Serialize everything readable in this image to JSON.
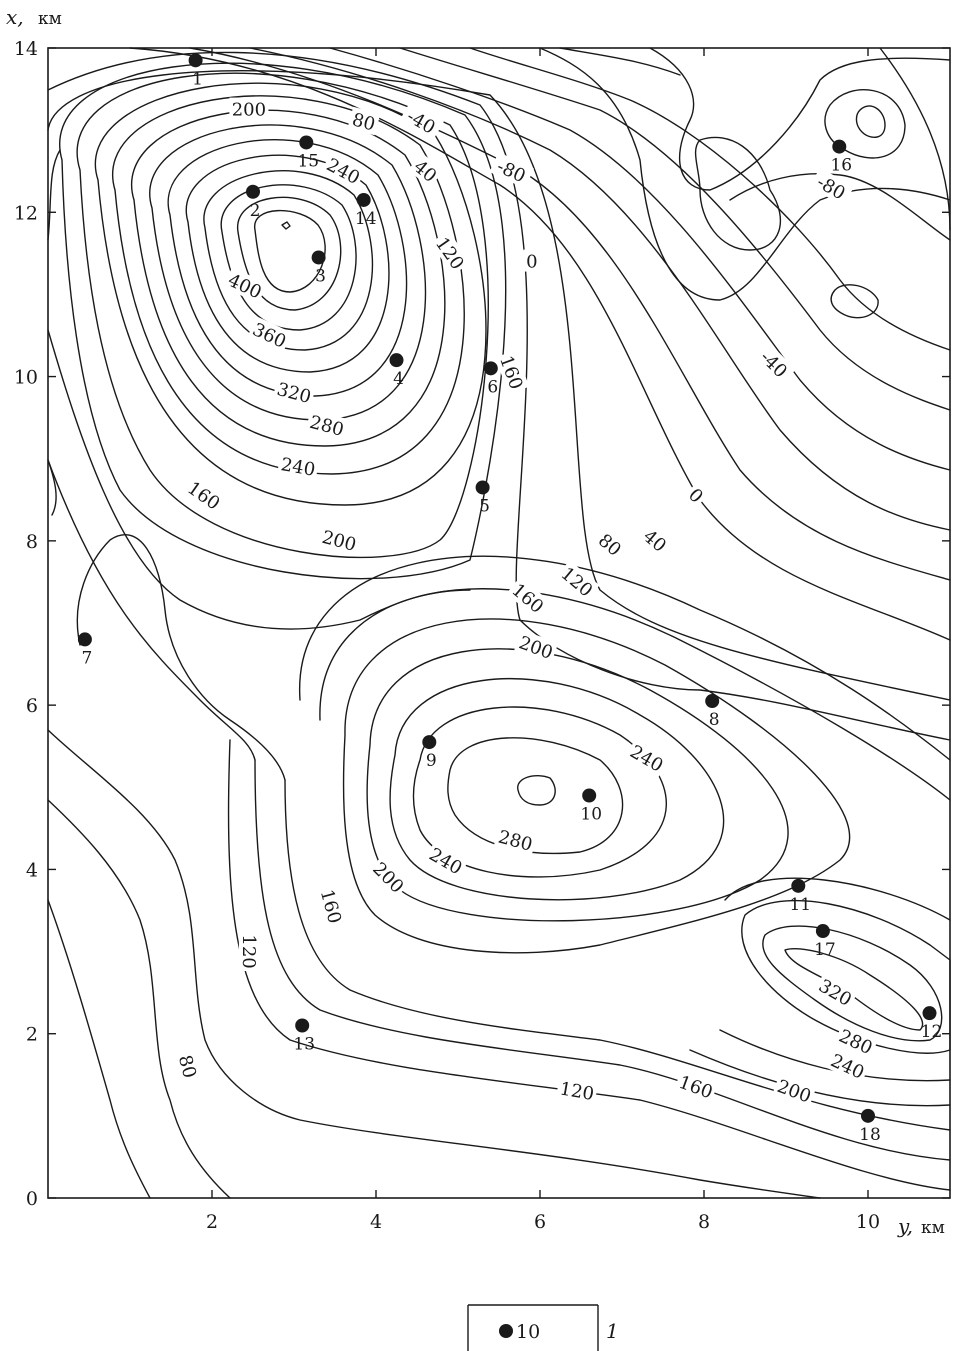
{
  "map": {
    "y_axis": {
      "name": "y,",
      "unit": "км",
      "ticks": [
        "2",
        "4",
        "6",
        "8",
        "10"
      ],
      "values": [
        2,
        4,
        6,
        8,
        10
      ],
      "range": [
        0,
        11
      ]
    },
    "x_axis": {
      "name": "x,",
      "unit": "км",
      "ticks": [
        "0",
        "2",
        "4",
        "6",
        "8",
        "10",
        "12",
        "14"
      ],
      "values": [
        0,
        2,
        4,
        6,
        8,
        10,
        12,
        14
      ],
      "range": [
        0,
        14
      ]
    },
    "contour_labels": [
      {
        "text": "200",
        "y": 2.45,
        "x": 13.25,
        "angle": 0
      },
      {
        "text": "80",
        "y": 3.85,
        "x": 13.1,
        "angle": 15
      },
      {
        "text": "-40",
        "y": 4.55,
        "x": 13.1,
        "angle": 30
      },
      {
        "text": "240",
        "y": 3.6,
        "x": 12.5,
        "angle": 28
      },
      {
        "text": "40",
        "y": 4.6,
        "x": 12.5,
        "angle": 40
      },
      {
        "text": "-80",
        "y": 5.65,
        "x": 12.5,
        "angle": 25
      },
      {
        "text": "120",
        "y": 4.9,
        "x": 11.5,
        "angle": 55
      },
      {
        "text": "0",
        "y": 5.9,
        "x": 11.4,
        "angle": 0
      },
      {
        "text": "400",
        "y": 2.4,
        "x": 11.1,
        "angle": 25
      },
      {
        "text": "360",
        "y": 2.7,
        "x": 10.5,
        "angle": 25
      },
      {
        "text": "320",
        "y": 3.0,
        "x": 9.8,
        "angle": 15
      },
      {
        "text": "280",
        "y": 3.4,
        "x": 9.4,
        "angle": 15
      },
      {
        "text": "240",
        "y": 3.05,
        "x": 8.9,
        "angle": 10
      },
      {
        "text": "160",
        "y": 1.9,
        "x": 8.55,
        "angle": 35
      },
      {
        "text": "200",
        "y": 3.55,
        "x": 8.0,
        "angle": 15
      },
      {
        "text": "160",
        "y": 5.65,
        "x": 10.05,
        "angle": 70
      },
      {
        "text": "-40",
        "y": 8.85,
        "x": 10.15,
        "angle": 45
      },
      {
        "text": "0",
        "y": 7.9,
        "x": 8.55,
        "angle": 45
      },
      {
        "text": "40",
        "y": 7.4,
        "x": 8.0,
        "angle": 40
      },
      {
        "text": "80",
        "y": 6.85,
        "x": 7.95,
        "angle": 40
      },
      {
        "text": "120",
        "y": 6.45,
        "x": 7.5,
        "angle": 40
      },
      {
        "text": "160",
        "y": 5.85,
        "x": 7.3,
        "angle": 40
      },
      {
        "text": "200",
        "y": 5.95,
        "x": 6.7,
        "angle": 20
      },
      {
        "text": "240",
        "y": 7.3,
        "x": 5.35,
        "angle": 30
      },
      {
        "text": "280",
        "y": 5.7,
        "x": 4.35,
        "angle": 15
      },
      {
        "text": "240",
        "y": 4.85,
        "x": 4.1,
        "angle": 30
      },
      {
        "text": "200",
        "y": 4.15,
        "x": 3.9,
        "angle": 45
      },
      {
        "text": "160",
        "y": 3.45,
        "x": 3.55,
        "angle": 75
      },
      {
        "text": "120",
        "y": 2.45,
        "x": 3.0,
        "angle": 90
      },
      {
        "text": "80",
        "y": 1.7,
        "x": 1.6,
        "angle": 75
      },
      {
        "text": "120",
        "y": 6.45,
        "x": 1.3,
        "angle": 10
      },
      {
        "text": "160",
        "y": 7.9,
        "x": 1.35,
        "angle": 20
      },
      {
        "text": "200",
        "y": 9.1,
        "x": 1.3,
        "angle": 20
      },
      {
        "text": "240",
        "y": 9.75,
        "x": 1.6,
        "angle": 25
      },
      {
        "text": "280",
        "y": 9.85,
        "x": 1.9,
        "angle": 25
      },
      {
        "text": "320",
        "y": 9.6,
        "x": 2.5,
        "angle": 30
      },
      {
        "text": "-80",
        "y": 9.55,
        "x": 12.3,
        "angle": 30
      }
    ],
    "wells": [
      {
        "id": "1",
        "y": 1.8,
        "x": 13.85
      },
      {
        "id": "15",
        "y": 3.15,
        "x": 12.85
      },
      {
        "id": "2",
        "y": 2.5,
        "x": 12.25
      },
      {
        "id": "14",
        "y": 3.85,
        "x": 12.15
      },
      {
        "id": "3",
        "y": 3.3,
        "x": 11.45
      },
      {
        "id": "4",
        "y": 4.25,
        "x": 10.2
      },
      {
        "id": "6",
        "y": 5.4,
        "x": 10.1
      },
      {
        "id": "5",
        "y": 5.3,
        "x": 8.65
      },
      {
        "id": "16",
        "y": 9.65,
        "x": 12.8
      },
      {
        "id": "7",
        "y": 0.45,
        "x": 6.8
      },
      {
        "id": "8",
        "y": 8.1,
        "x": 6.05
      },
      {
        "id": "9",
        "y": 4.65,
        "x": 5.55
      },
      {
        "id": "10",
        "y": 6.6,
        "x": 4.9
      },
      {
        "id": "11",
        "y": 9.15,
        "x": 3.8
      },
      {
        "id": "17",
        "y": 9.45,
        "x": 3.25
      },
      {
        "id": "12",
        "y": 10.75,
        "x": 2.25
      },
      {
        "id": "13",
        "y": 3.1,
        "x": 2.1
      },
      {
        "id": "18",
        "y": 10.0,
        "x": 1.0
      }
    ]
  },
  "legend": {
    "sample": "10",
    "number": "1"
  }
}
